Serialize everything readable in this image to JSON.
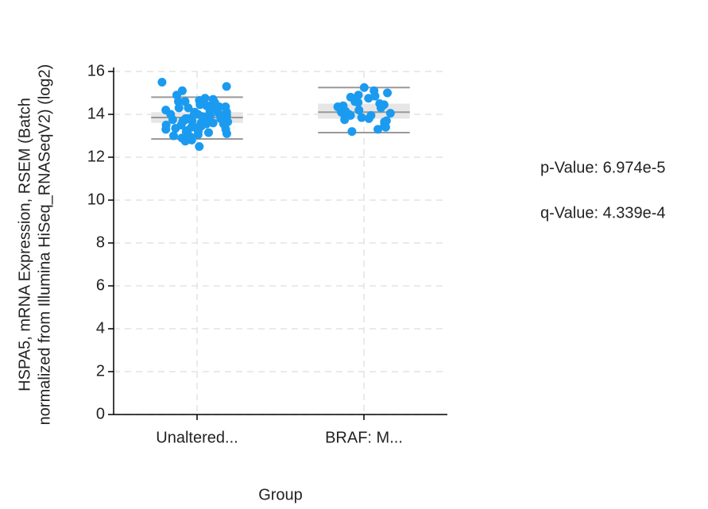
{
  "chart_data": {
    "type": "box",
    "y_label_lines": [
      "HSPA5, mRNA Expression, RSEM (Batch",
      "normalized from Illumina HiSeq_RNASeqV2) (log2)"
    ],
    "x_label": "Group",
    "annotations": [
      "p-Value: 6.974e-5",
      "q-Value: 4.339e-4"
    ],
    "categories": [
      "Unaltered...",
      "BRAF: M..."
    ],
    "ylim": [
      0,
      16
    ],
    "yticks": [
      0,
      2,
      4,
      6,
      8,
      10,
      12,
      14,
      16
    ],
    "grid": true,
    "point_color": "#1a9bf0",
    "box_color": "#e6e6e6",
    "whisker_color": "#999999",
    "boxes": [
      {
        "whisker_low": 12.85,
        "q1": 13.6,
        "median": 13.85,
        "q3": 14.1,
        "whisker_high": 14.8,
        "points": [
          15.5,
          15.3,
          15.1,
          14.9,
          14.7,
          14.65,
          14.6,
          14.55,
          14.5,
          14.45,
          14.4,
          14.4,
          14.35,
          14.3,
          14.3,
          14.25,
          14.2,
          14.2,
          14.15,
          14.1,
          14.1,
          14.05,
          14.0,
          14.0,
          13.95,
          13.95,
          13.9,
          13.9,
          13.85,
          13.85,
          13.8,
          13.8,
          13.8,
          13.75,
          13.75,
          13.7,
          13.7,
          13.65,
          13.65,
          13.6,
          13.6,
          13.55,
          13.5,
          13.5,
          13.45,
          13.4,
          13.4,
          13.35,
          13.3,
          13.3,
          13.25,
          13.2,
          13.15,
          13.1,
          13.05,
          13.0,
          12.95,
          12.9,
          12.85,
          12.8,
          12.75,
          12.5,
          14.75,
          14.6,
          14.35,
          14.0,
          13.9,
          13.75,
          13.55,
          13.2
        ]
      },
      {
        "whisker_low": 13.15,
        "q1": 13.8,
        "median": 14.1,
        "q3": 14.5,
        "whisker_high": 15.25,
        "points": [
          15.25,
          15.1,
          15.0,
          14.9,
          14.85,
          14.8,
          14.75,
          14.7,
          14.6,
          14.55,
          14.5,
          14.45,
          14.4,
          14.3,
          14.25,
          14.2,
          14.15,
          14.1,
          14.05,
          14.0,
          13.95,
          13.9,
          13.85,
          13.8,
          13.75,
          13.7,
          13.65,
          13.6,
          13.5,
          13.4,
          13.3,
          13.2,
          14.35,
          13.95
        ]
      }
    ]
  }
}
